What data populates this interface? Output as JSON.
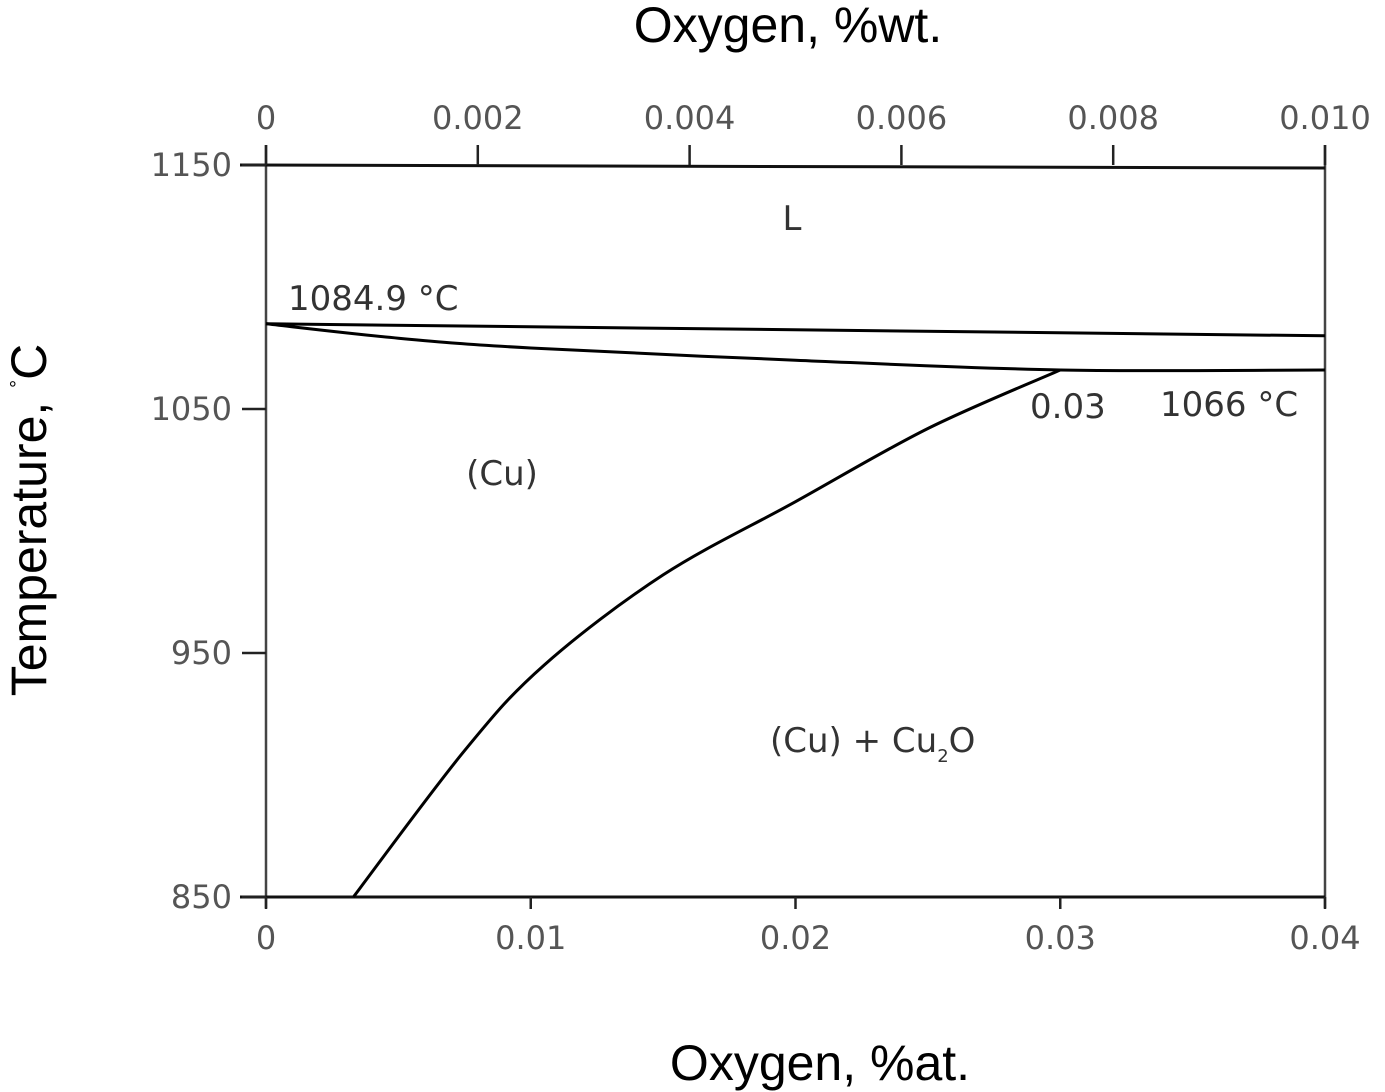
{
  "chart_data": {
    "type": "line",
    "title": "",
    "xlabel_top": "Oxygen, %wt.",
    "xlabel_bottom": "Oxygen, %at.",
    "ylabel": "Temperature, °C",
    "ylabel_text": "Temperature, ",
    "ylabel_unit": "C",
    "ylabel_degree": "°",
    "xlim_at": [
      0,
      0.04
    ],
    "xlim_wt": [
      0,
      0.01
    ],
    "ylim": [
      850,
      1150
    ],
    "x_ticks_bottom": [
      "0",
      "0.01",
      "0.02",
      "0.03",
      "0.04"
    ],
    "x_tick_values_bottom": [
      0,
      0.01,
      0.02,
      0.03,
      0.04
    ],
    "x_ticks_top": [
      "0",
      "0.002",
      "0.004",
      "0.006",
      "0.008",
      "0.010"
    ],
    "x_tick_values_top": [
      0,
      0.002,
      0.004,
      0.006,
      0.008,
      0.01
    ],
    "y_ticks": [
      "1150",
      "1050",
      "950",
      "850"
    ],
    "y_tick_values": [
      1150,
      1050,
      950,
      850
    ],
    "series": [
      {
        "x": [
          0,
          0.04
        ],
        "y": [
          1084.9,
          1080
        ]
      },
      {
        "x": [
          0,
          0.005,
          0.01,
          0.02,
          0.03,
          0.04
        ],
        "y": [
          1084.9,
          1079,
          1075,
          1070,
          1066,
          1066
        ]
      },
      {
        "x": [
          0.0033,
          0.0075,
          0.0105,
          0.015,
          0.02,
          0.025,
          0.03
        ],
        "y": [
          850,
          910,
          945,
          982,
          1012,
          1042,
          1066
        ]
      }
    ],
    "regions": {
      "liquid": "L",
      "cu": "(Cu)",
      "cu_cu2o_prefix": "(Cu) + Cu",
      "cu_cu2o_sub": "2",
      "cu_cu2o_suffix": "O"
    },
    "annotations": {
      "melting_point": "1084.9 °C",
      "eutectic_comp": "0.03",
      "eutectic_temp": "1066 °C"
    },
    "grid": false,
    "legend": "none"
  }
}
